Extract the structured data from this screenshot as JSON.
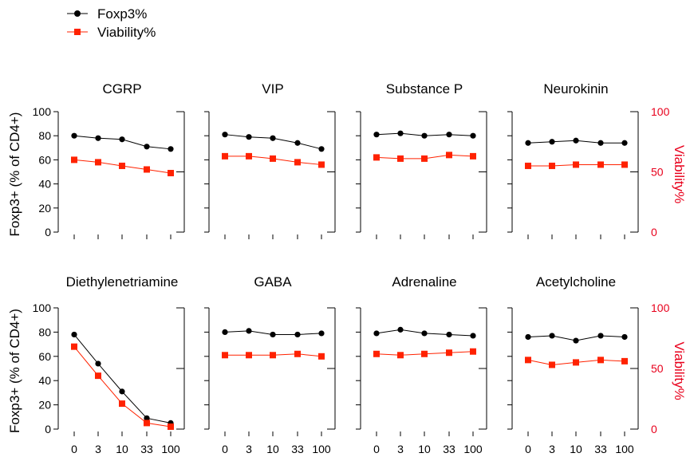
{
  "legend": {
    "placement": "top-left",
    "items": [
      {
        "label": "Foxp3%",
        "color": "#000000",
        "marker": "circle"
      },
      {
        "label": "Viability%",
        "color": "#ff2200",
        "marker": "square"
      }
    ]
  },
  "axes": {
    "left_label": "Foxp3+ (% of CD4+)",
    "left_color": "#000000",
    "right_label": "Viability%",
    "right_color": "#e8001c",
    "left_ticks": [
      "0",
      "20",
      "40",
      "60",
      "80",
      "100"
    ],
    "right_ticks": [
      "0",
      "50",
      "100"
    ],
    "x_ticks": [
      "0",
      "3",
      "10",
      "33",
      "100"
    ]
  },
  "chart_data": [
    {
      "type": "line",
      "title": "CGRP",
      "categories": [
        "0",
        "3",
        "10",
        "33",
        "100"
      ],
      "ylim": [
        0,
        100
      ],
      "y2lim": [
        0,
        100
      ],
      "series": [
        {
          "name": "Foxp3%",
          "values": [
            80,
            78,
            77,
            71,
            69
          ]
        },
        {
          "name": "Viability%",
          "values": [
            60,
            58,
            55,
            52,
            49
          ]
        }
      ]
    },
    {
      "type": "line",
      "title": "VIP",
      "categories": [
        "0",
        "3",
        "10",
        "33",
        "100"
      ],
      "ylim": [
        0,
        100
      ],
      "y2lim": [
        0,
        100
      ],
      "series": [
        {
          "name": "Foxp3%",
          "values": [
            81,
            79,
            78,
            74,
            69
          ]
        },
        {
          "name": "Viability%",
          "values": [
            63,
            63,
            61,
            58,
            56
          ]
        }
      ]
    },
    {
      "type": "line",
      "title": "Substance P",
      "categories": [
        "0",
        "3",
        "10",
        "33",
        "100"
      ],
      "ylim": [
        0,
        100
      ],
      "y2lim": [
        0,
        100
      ],
      "series": [
        {
          "name": "Foxp3%",
          "values": [
            81,
            82,
            80,
            81,
            80
          ]
        },
        {
          "name": "Viability%",
          "values": [
            62,
            61,
            61,
            64,
            63
          ]
        }
      ]
    },
    {
      "type": "line",
      "title": "Neurokinin",
      "categories": [
        "0",
        "3",
        "10",
        "33",
        "100"
      ],
      "ylim": [
        0,
        100
      ],
      "y2lim": [
        0,
        100
      ],
      "series": [
        {
          "name": "Foxp3%",
          "values": [
            74,
            75,
            76,
            74,
            74
          ]
        },
        {
          "name": "Viability%",
          "values": [
            55,
            55,
            56,
            56,
            56
          ]
        }
      ]
    },
    {
      "type": "line",
      "title": "Diethylenetriamine",
      "categories": [
        "0",
        "3",
        "10",
        "33",
        "100"
      ],
      "ylim": [
        0,
        100
      ],
      "y2lim": [
        0,
        100
      ],
      "series": [
        {
          "name": "Foxp3%",
          "values": [
            78,
            54,
            31,
            9,
            5
          ]
        },
        {
          "name": "Viability%",
          "values": [
            68,
            44,
            21,
            5,
            2
          ]
        }
      ]
    },
    {
      "type": "line",
      "title": "GABA",
      "categories": [
        "0",
        "3",
        "10",
        "33",
        "100"
      ],
      "ylim": [
        0,
        100
      ],
      "y2lim": [
        0,
        100
      ],
      "series": [
        {
          "name": "Foxp3%",
          "values": [
            80,
            81,
            78,
            78,
            79
          ]
        },
        {
          "name": "Viability%",
          "values": [
            61,
            61,
            61,
            62,
            60
          ]
        }
      ]
    },
    {
      "type": "line",
      "title": "Adrenaline",
      "categories": [
        "0",
        "3",
        "10",
        "33",
        "100"
      ],
      "ylim": [
        0,
        100
      ],
      "y2lim": [
        0,
        100
      ],
      "series": [
        {
          "name": "Foxp3%",
          "values": [
            79,
            82,
            79,
            78,
            77
          ]
        },
        {
          "name": "Viability%",
          "values": [
            62,
            61,
            62,
            63,
            64
          ]
        }
      ]
    },
    {
      "type": "line",
      "title": "Acetylcholine",
      "categories": [
        "0",
        "3",
        "10",
        "33",
        "100"
      ],
      "ylim": [
        0,
        100
      ],
      "y2lim": [
        0,
        100
      ],
      "series": [
        {
          "name": "Foxp3%",
          "values": [
            76,
            77,
            73,
            77,
            76
          ]
        },
        {
          "name": "Viability%",
          "values": [
            57,
            53,
            55,
            57,
            56
          ]
        }
      ]
    }
  ]
}
